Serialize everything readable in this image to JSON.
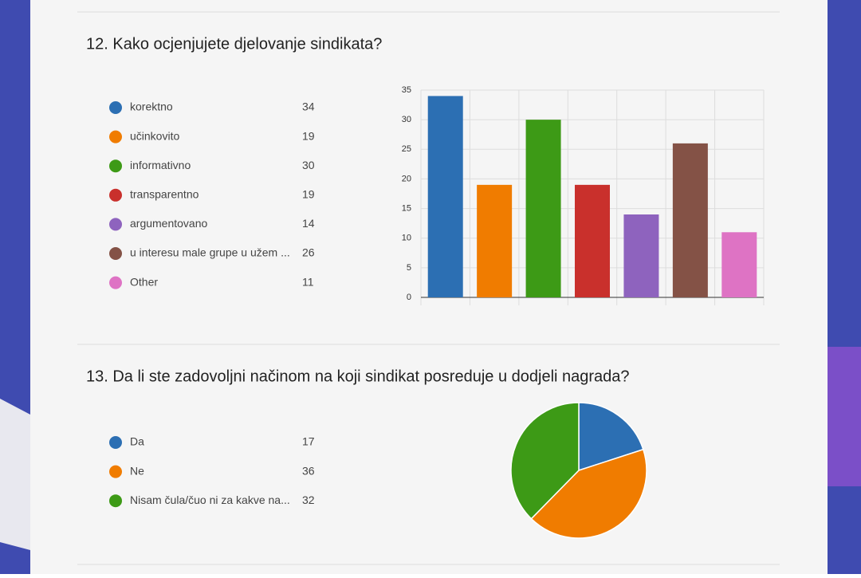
{
  "chart_data": [
    {
      "type": "bar",
      "title": "12. Kako ocjenjujete djelovanje sindikata?",
      "categories": [
        "korektno",
        "učinkovito",
        "informativno",
        "transparentno",
        "argumentovano",
        "u interesu male grupe u užem ...",
        "Other"
      ],
      "values": [
        34,
        19,
        30,
        19,
        14,
        26,
        11
      ],
      "colors": [
        "#2c6fb3",
        "#f07c00",
        "#3d9a16",
        "#c9302c",
        "#8e63be",
        "#845246",
        "#de73c4"
      ],
      "ylim": [
        0,
        35
      ],
      "yticks": [
        0,
        5,
        10,
        15,
        20,
        25,
        30,
        35
      ],
      "grid": true
    },
    {
      "type": "pie",
      "title": "13. Da li ste zadovoljni načinom na koji sindikat posreduje u dodjeli nagrada?",
      "categories": [
        "Da",
        "Ne",
        "Nisam čula/čuo ni za kakve na..."
      ],
      "values": [
        17,
        36,
        32
      ],
      "colors": [
        "#2c6fb3",
        "#f07c00",
        "#3d9a16"
      ]
    }
  ]
}
